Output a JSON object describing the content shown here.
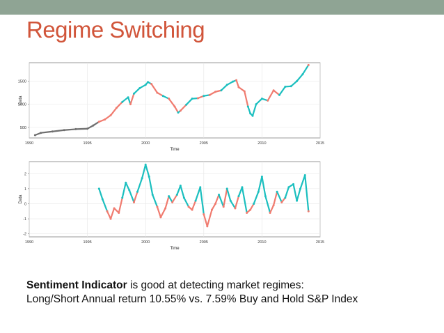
{
  "header": {
    "title": "Regime Switching"
  },
  "colors": {
    "regime_a": "#f07b6f",
    "regime_b": "#1bbfbf",
    "pre_signal": "#6e6e6e",
    "title": "#d1553a",
    "top_bar": "#8fa494"
  },
  "chart_data": [
    {
      "type": "scatter",
      "xlabel": "Time",
      "ylabel": "Data",
      "xlim": [
        1990,
        2015
      ],
      "ylim": [
        270,
        1900
      ],
      "x_ticks": [
        "1990",
        "1995",
        "2000",
        "2005",
        "2010",
        "2015"
      ],
      "y_ticks": [
        "500",
        "1000",
        "1500"
      ],
      "grid": true,
      "x": [
        1990.5,
        1991.0,
        1992.0,
        1993.0,
        1994.0,
        1995.0,
        1995.5,
        1996.0,
        1996.5,
        1997.0,
        1997.5,
        1998.0,
        1998.5,
        1998.7,
        1999.0,
        1999.5,
        2000.0,
        2000.2,
        2000.5,
        2001.0,
        2001.5,
        2002.0,
        2002.5,
        2002.8,
        2003.0,
        2003.5,
        2004.0,
        2004.5,
        2005.0,
        2005.5,
        2006.0,
        2006.5,
        2007.0,
        2007.5,
        2007.8,
        2008.0,
        2008.5,
        2008.8,
        2009.0,
        2009.2,
        2009.5,
        2010.0,
        2010.5,
        2011.0,
        2011.5,
        2012.0,
        2012.5,
        2013.0,
        2013.5,
        2014.0
      ],
      "y": [
        330,
        380,
        410,
        440,
        460,
        470,
        540,
        620,
        670,
        760,
        920,
        1050,
        1150,
        1000,
        1230,
        1350,
        1420,
        1480,
        1440,
        1250,
        1180,
        1120,
        950,
        820,
        860,
        990,
        1120,
        1130,
        1180,
        1200,
        1270,
        1300,
        1420,
        1490,
        1520,
        1370,
        1280,
        950,
        800,
        750,
        1000,
        1120,
        1080,
        1300,
        1200,
        1380,
        1390,
        1500,
        1650,
        1850
      ],
      "regimes": [
        "pre",
        "pre",
        "pre",
        "pre",
        "pre",
        "pre",
        "pre",
        "a",
        "a",
        "a",
        "a",
        "b",
        "b",
        "a",
        "b",
        "b",
        "b",
        "b",
        "a",
        "a",
        "b",
        "a",
        "a",
        "b",
        "a",
        "b",
        "b",
        "a",
        "b",
        "a",
        "a",
        "b",
        "b",
        "b",
        "a",
        "a",
        "a",
        "b",
        "b",
        "b",
        "b",
        "b",
        "a",
        "a",
        "b",
        "b",
        "b",
        "b",
        "b",
        "a"
      ]
    },
    {
      "type": "scatter",
      "xlabel": "Time",
      "ylabel": "Data",
      "xlim": [
        1990,
        2015
      ],
      "ylim": [
        -2.2,
        2.8
      ],
      "x_ticks": [
        "1990",
        "1995",
        "2000",
        "2005",
        "2010",
        "2015"
      ],
      "y_ticks": [
        "-2",
        "-1",
        "0",
        "1",
        "2"
      ],
      "grid": true,
      "x": [
        1996.0,
        1996.3,
        1996.7,
        1997.0,
        1997.3,
        1997.7,
        1998.0,
        1998.3,
        1998.6,
        1999.0,
        1999.3,
        1999.7,
        2000.0,
        2000.3,
        2000.6,
        2001.0,
        2001.3,
        2001.7,
        2002.0,
        2002.3,
        2002.7,
        2003.0,
        2003.3,
        2003.7,
        2004.0,
        2004.3,
        2004.7,
        2005.0,
        2005.3,
        2005.7,
        2006.0,
        2006.3,
        2006.7,
        2007.0,
        2007.3,
        2007.7,
        2008.0,
        2008.3,
        2008.7,
        2009.0,
        2009.3,
        2009.7,
        2010.0,
        2010.3,
        2010.7,
        2011.0,
        2011.3,
        2011.7,
        2012.0,
        2012.3,
        2012.7,
        2013.0,
        2013.3,
        2013.7,
        2014.0
      ],
      "y": [
        1.0,
        0.3,
        -0.5,
        -1.0,
        -0.3,
        -0.6,
        0.4,
        1.4,
        0.9,
        0.1,
        0.8,
        1.7,
        2.6,
        1.8,
        0.6,
        -0.2,
        -0.9,
        -0.3,
        0.5,
        0.1,
        0.6,
        1.2,
        0.4,
        -0.2,
        -0.4,
        0.2,
        1.1,
        -0.7,
        -1.5,
        -0.4,
        0.0,
        0.6,
        -0.2,
        1.0,
        0.2,
        -0.3,
        0.5,
        1.1,
        -0.6,
        -0.4,
        0.0,
        0.8,
        1.8,
        0.5,
        -0.6,
        -0.1,
        0.8,
        0.1,
        0.4,
        1.1,
        1.3,
        0.2,
        1.0,
        1.9,
        -0.5
      ],
      "regimes": [
        "b",
        "b",
        "a",
        "a",
        "a",
        "a",
        "b",
        "b",
        "b",
        "a",
        "b",
        "b",
        "b",
        "b",
        "b",
        "a",
        "a",
        "a",
        "b",
        "a",
        "b",
        "b",
        "b",
        "a",
        "a",
        "b",
        "b",
        "a",
        "a",
        "a",
        "a",
        "b",
        "a",
        "b",
        "b",
        "a",
        "b",
        "b",
        "a",
        "a",
        "b",
        "b",
        "b",
        "b",
        "a",
        "a",
        "b",
        "a",
        "b",
        "b",
        "b",
        "b",
        "b",
        "b",
        "a"
      ]
    }
  ],
  "caption": {
    "line1_bold": "Sentiment Indicator",
    "line1_rest": " is good at detecting market regimes:",
    "line2": "Long/Short Annual return  10.55% vs. 7.59% Buy and Hold S&P Index"
  }
}
